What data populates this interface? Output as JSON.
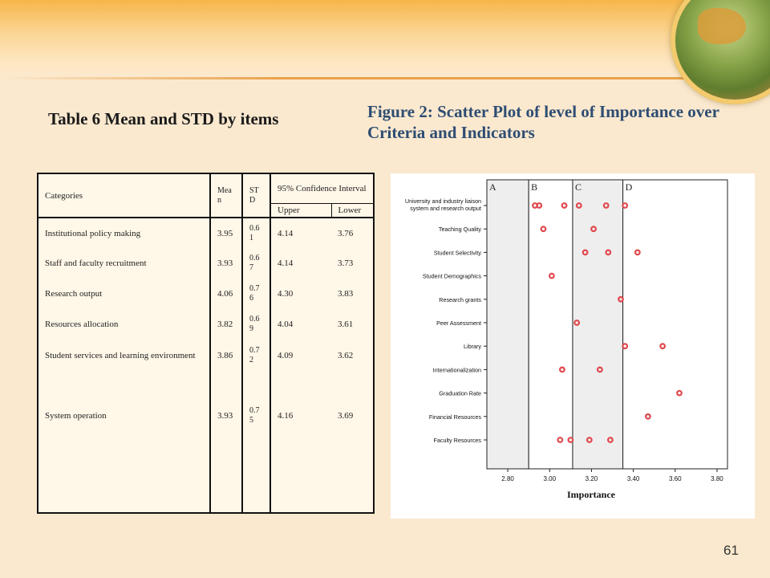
{
  "slide": {
    "table_title": "Table 6  Mean and STD by items",
    "figure_title": "Figure 2: Scatter Plot of level of Importance over Criteria and Indicators",
    "page_number": "61"
  },
  "table": {
    "headers": {
      "categories": "Categories",
      "mean": "Mea n",
      "std": "ST D",
      "ci": "95% Confidence Interval",
      "upper": "Upper",
      "lower": "Lower"
    },
    "rows": [
      {
        "category": "Institutional policy making",
        "mean": "3.95",
        "std": "0.6 1",
        "upper": "4.14",
        "lower": "3.76"
      },
      {
        "category": "Staff and faculty recruitment",
        "mean": "3.93",
        "std": "0.6 7",
        "upper": "4.14",
        "lower": "3.73"
      },
      {
        "category": "Research output",
        "mean": "4.06",
        "std": "0.7 6",
        "upper": "4.30",
        "lower": "3.83"
      },
      {
        "category": "Resources allocation",
        "mean": "3.82",
        "std": "0.6 9",
        "upper": "4.04",
        "lower": "3.61"
      },
      {
        "category": "Student services and learning environment",
        "mean": "3.86",
        "std": "0.7 2",
        "upper": "4.09",
        "lower": "3.62"
      },
      {
        "category": "System operation",
        "mean": "3.93",
        "std": "0.7 5",
        "upper": "4.16",
        "lower": "3.69"
      }
    ]
  },
  "chart_data": {
    "type": "scatter",
    "xlabel": "Importance",
    "xlim": [
      2.7,
      3.85
    ],
    "x_ticks": [
      "2.80",
      "3.00",
      "3.20",
      "3.40",
      "3.60",
      "3.80"
    ],
    "x_tick_values": [
      2.8,
      3.0,
      3.2,
      3.4,
      3.6,
      3.8
    ],
    "zones": [
      {
        "label": "A",
        "from": 2.7,
        "to": 2.9,
        "shaded": true
      },
      {
        "label": "B",
        "from": 2.9,
        "to": 3.11,
        "shaded": false
      },
      {
        "label": "C",
        "from": 3.11,
        "to": 3.35,
        "shaded": true
      },
      {
        "label": "D",
        "from": 3.35,
        "to": 3.85,
        "shaded": false
      }
    ],
    "categories": [
      "University and industry liaison system and research output",
      "Teaching Quality",
      "Student Selectivity",
      "Student Demographics",
      "Research grants",
      "Peer Assessment",
      "Library",
      "Internationalization",
      "Graduation Rate",
      "Financial Resources",
      "Faculty Resources"
    ],
    "points": [
      {
        "category": "University and industry liaison system and research output",
        "x": [
          2.93,
          2.95,
          3.07,
          3.14,
          3.27,
          3.36
        ]
      },
      {
        "category": "Teaching Quality",
        "x": [
          2.97,
          3.21
        ]
      },
      {
        "category": "Student Selectivity",
        "x": [
          3.17,
          3.28,
          3.42
        ]
      },
      {
        "category": "Student Demographics",
        "x": [
          3.01
        ]
      },
      {
        "category": "Research grants",
        "x": [
          3.34
        ]
      },
      {
        "category": "Peer Assessment",
        "x": [
          3.13
        ]
      },
      {
        "category": "Library",
        "x": [
          3.36,
          3.54
        ]
      },
      {
        "category": "Internationalization",
        "x": [
          3.06,
          3.24
        ]
      },
      {
        "category": "Graduation Rate",
        "x": [
          3.62
        ]
      },
      {
        "category": "Financial Resources",
        "x": [
          3.47
        ]
      },
      {
        "category": "Faculty Resources",
        "x": [
          3.05,
          3.1,
          3.19,
          3.29
        ]
      }
    ],
    "marker_color": "#e0474c",
    "zone_shade_color": "#eeeeee"
  }
}
